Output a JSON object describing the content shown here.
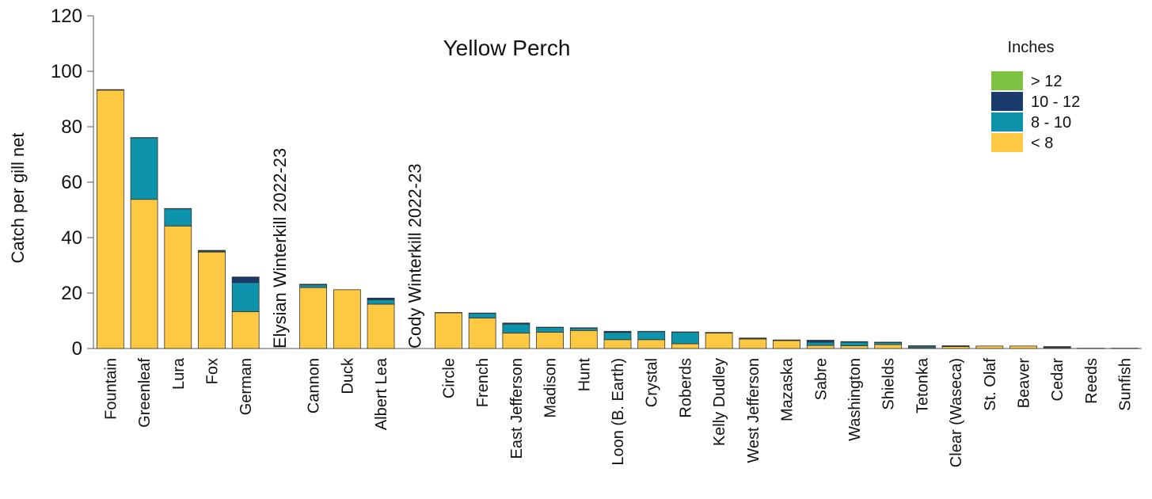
{
  "chart_data": {
    "type": "bar",
    "stacked": true,
    "title": "Yellow Perch",
    "xlabel": "",
    "ylabel": "Catch per gill net",
    "ylim": [
      0,
      120
    ],
    "yticks": [
      0,
      20,
      40,
      60,
      80,
      100,
      120
    ],
    "grid": false,
    "legend": {
      "title": "Inches",
      "position": "top-right"
    },
    "categories": [
      "Fountain",
      "Greenleaf",
      "Lura",
      "Fox",
      "German",
      "",
      "Cannon",
      "Duck",
      "Albert Lea",
      "",
      "Circle",
      "French",
      "East Jefferson",
      "Madison",
      "Hunt",
      "Loon (B. Earth)",
      "Crystal",
      "Roberds",
      "Kelly Dudley",
      "West Jefferson",
      "Mazaska",
      "Sabre",
      "Washington",
      "Shields",
      "Tetonka",
      "Clear (Waseca)",
      "St. Olaf",
      "Beaver",
      "Cedar",
      "Reeds",
      "Sunfish"
    ],
    "annotations": [
      {
        "category_index": 5,
        "text": "Elysian Winterkill 2022-23"
      },
      {
        "category_index": 9,
        "text": "Cody Winterkill 2022-23"
      }
    ],
    "series": [
      {
        "name": "< 8",
        "color": "#FDC842",
        "values": [
          93.2,
          53.8,
          44.2,
          34.8,
          13.3,
          0,
          22.0,
          21.2,
          16.0,
          0,
          12.9,
          11.0,
          5.6,
          5.9,
          6.5,
          3.2,
          3.2,
          1.7,
          5.6,
          3.4,
          2.9,
          1.1,
          1.0,
          1.4,
          0.3,
          0.7,
          0.9,
          0.9,
          0.3,
          0.1,
          0.1
        ]
      },
      {
        "name": "8 - 10",
        "color": "#0E93AD",
        "values": [
          0,
          22.2,
          6.2,
          0.3,
          10.5,
          0,
          1.0,
          0,
          1.6,
          0,
          0,
          1.7,
          3.2,
          1.7,
          0.9,
          2.6,
          2.9,
          4.2,
          0.1,
          0.3,
          0.1,
          1.2,
          1.3,
          0.8,
          0.6,
          0.2,
          0,
          0,
          0.3,
          0,
          0
        ]
      },
      {
        "name": "10 - 12",
        "color": "#1A3A6B",
        "values": [
          0.2,
          0.1,
          0.1,
          0.3,
          2.0,
          0,
          0.2,
          0,
          0.6,
          0,
          0.1,
          0.1,
          0.4,
          0.1,
          0.1,
          0.4,
          0.1,
          0.1,
          0.1,
          0.1,
          0.1,
          0.7,
          0.2,
          0.1,
          0.1,
          0.1,
          0,
          0,
          0.1,
          0,
          0
        ]
      },
      {
        "name": "> 12",
        "color": "#7DC242",
        "values": [
          0,
          0,
          0,
          0,
          0,
          0,
          0,
          0,
          0,
          0,
          0,
          0,
          0,
          0,
          0,
          0,
          0,
          0,
          0,
          0,
          0,
          0,
          0,
          0,
          0,
          0,
          0,
          0,
          0,
          0,
          0
        ]
      }
    ],
    "legend_order": [
      "> 12",
      "10 - 12",
      "8 - 10",
      "< 8"
    ]
  }
}
